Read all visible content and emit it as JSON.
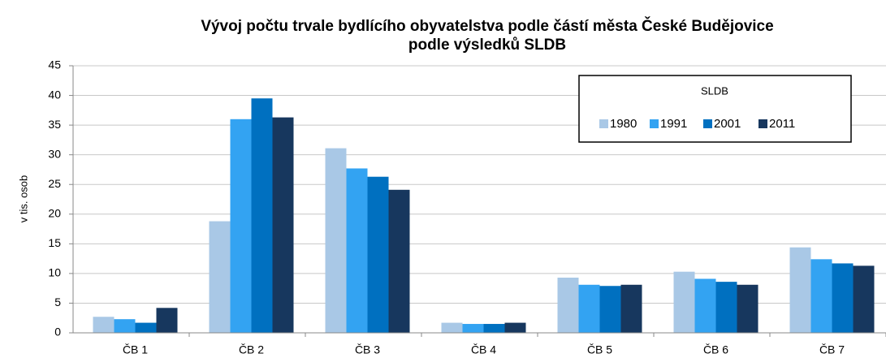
{
  "chart_data": {
    "type": "bar",
    "title": [
      "Vývoj  počtu trvale bydlícího obyvatelstva podle částí města České Budějovice",
      "podle výsledků  SLDB"
    ],
    "y_label": "v tis. osob",
    "categories": [
      "ČB 1",
      "ČB 2",
      "ČB 3",
      "ČB 4",
      "ČB 5",
      "ČB 6",
      "ČB 7"
    ],
    "legend_title": "SLDB",
    "series": [
      {
        "name": "1980",
        "color": "#a9c8e6",
        "values": [
          2.7,
          18.8,
          31.1,
          1.7,
          9.3,
          10.3,
          14.4
        ]
      },
      {
        "name": "1991",
        "color": "#33a3f2",
        "values": [
          2.3,
          36.0,
          27.7,
          1.5,
          8.1,
          9.1,
          12.4
        ]
      },
      {
        "name": "2001",
        "color": "#0070c0",
        "values": [
          1.7,
          39.5,
          26.3,
          1.5,
          7.9,
          8.6,
          11.7
        ]
      },
      {
        "name": "2011",
        "color": "#17375e",
        "values": [
          4.2,
          36.3,
          24.1,
          1.7,
          8.1,
          8.1,
          11.3
        ]
      }
    ],
    "ylim": [
      0,
      45
    ],
    "yticks": [
      0,
      5,
      10,
      15,
      20,
      25,
      30,
      35,
      40,
      45
    ],
    "grid": true
  }
}
